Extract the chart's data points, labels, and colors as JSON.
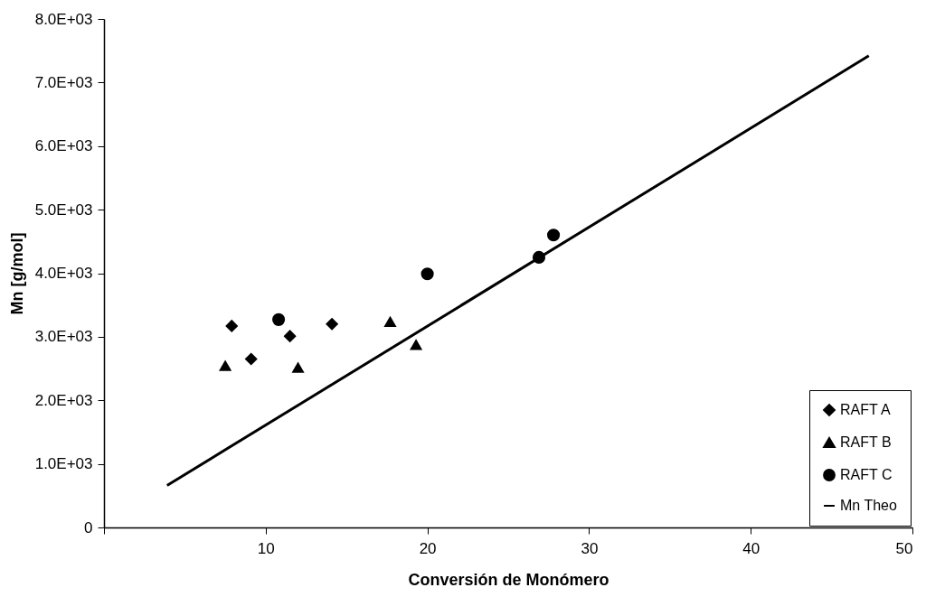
{
  "chart_data": {
    "type": "scatter",
    "xlabel": "Conversión de Monómero",
    "ylabel": "Mn [g/mol]",
    "xlim": [
      0,
      50
    ],
    "xticks": [
      {
        "value": 0,
        "label": null
      },
      10,
      20,
      30,
      40,
      50
    ],
    "ylim": [
      0,
      8000
    ],
    "yticks": [
      {
        "value": 0,
        "label": "0"
      },
      {
        "value": 1000,
        "label": "1.0E+03"
      },
      {
        "value": 2000,
        "label": "2.0E+03"
      },
      {
        "value": 3000,
        "label": "3.0E+03"
      },
      {
        "value": 4000,
        "label": "4.0E+03"
      },
      {
        "value": 5000,
        "label": "5.0E+03"
      },
      {
        "value": 6000,
        "label": "6.0E+03"
      },
      {
        "value": 7000,
        "label": "7.0E+03"
      },
      {
        "value": 8000,
        "label": "8.0E+03"
      }
    ],
    "grid": false,
    "legend": "bottom right",
    "series": [
      {
        "name": "RAFT A",
        "type": "scatter",
        "marker": "diamond",
        "color": "#000000",
        "x": [
          7.9,
          9.1,
          11.5,
          14.1
        ],
        "values": [
          3170,
          2650,
          3010,
          3200
        ]
      },
      {
        "name": "RAFT B",
        "type": "scatter",
        "marker": "triangle",
        "color": "#000000",
        "x": [
          7.5,
          12.0,
          17.7,
          19.3
        ],
        "values": [
          2550,
          2520,
          3240,
          2880
        ]
      },
      {
        "name": "RAFT C",
        "type": "scatter",
        "marker": "circle",
        "color": "#000000",
        "x": [
          10.8,
          20.0,
          26.9,
          27.8
        ],
        "values": [
          3270,
          3990,
          4250,
          4600
        ]
      },
      {
        "name": "Mn Theo",
        "type": "line",
        "line_style": "solid",
        "color": "#000000",
        "x": [
          3.9,
          47.3
        ],
        "values": [
          660,
          7420
        ]
      }
    ]
  }
}
